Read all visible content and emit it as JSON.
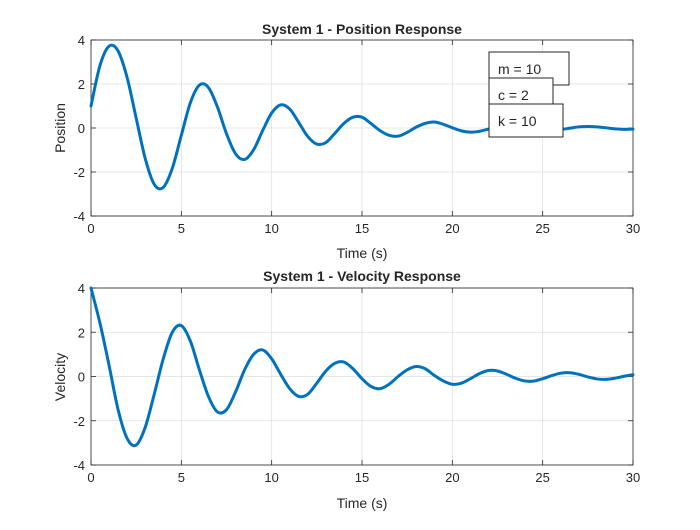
{
  "figure": {
    "background": "#ffffff",
    "line_color": "#0072bd",
    "grid_color": "#dfdfdf"
  },
  "chart_data": [
    {
      "type": "line",
      "title": "System 1 - Position Response",
      "xlabel": "Time (s)",
      "ylabel": "Position",
      "xlim": [
        0,
        30
      ],
      "ylim": [
        -4,
        4
      ],
      "xticks": [
        0,
        5,
        10,
        15,
        20,
        25,
        30
      ],
      "yticks": [
        -4,
        -2,
        0,
        2,
        4
      ],
      "grid": true,
      "series": [
        {
          "color": "#0072bd",
          "x": [
            0,
            0.5,
            1,
            1.5,
            2,
            2.5,
            3,
            3.5,
            4,
            4.5,
            5,
            5.5,
            6,
            6.5,
            7,
            7.5,
            8,
            8.5,
            9,
            9.5,
            10,
            10.5,
            11,
            11.5,
            12,
            12.5,
            13,
            13.5,
            14,
            14.5,
            15,
            15.5,
            16,
            16.5,
            17,
            17.5,
            18,
            18.5,
            19,
            19.5,
            20,
            20.5,
            21,
            21.5,
            22,
            22.5,
            23,
            23.5,
            24,
            24.5,
            25,
            25.5,
            26,
            26.5,
            27,
            27.5,
            28,
            28.5,
            29,
            29.5,
            30
          ],
          "y": [
            1.0,
            2.85,
            3.72,
            3.5,
            2.29,
            0.45,
            -1.38,
            -2.56,
            -2.7,
            -1.83,
            -0.33,
            1.15,
            1.95,
            1.84,
            0.95,
            -0.26,
            -1.17,
            -1.43,
            -0.99,
            -0.12,
            0.68,
            1.05,
            0.86,
            0.25,
            -0.39,
            -0.73,
            -0.66,
            -0.24,
            0.21,
            0.49,
            0.49,
            0.2,
            -0.12,
            -0.33,
            -0.37,
            -0.2,
            0.04,
            0.21,
            0.27,
            0.17,
            0.01,
            -0.13,
            -0.19,
            -0.15,
            -0.05,
            0.07,
            0.13,
            0.12,
            0.06,
            -0.03,
            -0.09,
            -0.11,
            -0.07,
            -0.01,
            0.05,
            0.07,
            0.05,
            0.01,
            -0.04,
            -0.06,
            -0.05
          ]
        }
      ],
      "annotations": [
        "m = 10",
        "c = 2",
        "k = 10"
      ]
    },
    {
      "type": "line",
      "title": "System 1 - Velocity Response",
      "xlabel": "Time (s)",
      "ylabel": "Velocity",
      "xlim": [
        0,
        30
      ],
      "ylim": [
        -4,
        4
      ],
      "xticks": [
        0,
        5,
        10,
        15,
        20,
        25,
        30
      ],
      "yticks": [
        -4,
        -2,
        0,
        2,
        4
      ],
      "grid": true,
      "series": [
        {
          "color": "#0072bd",
          "x": [
            0,
            0.5,
            1,
            1.5,
            2,
            2.5,
            3,
            3.5,
            4,
            4.5,
            5,
            5.5,
            6,
            6.5,
            7,
            7.5,
            8,
            8.5,
            9,
            9.5,
            10,
            10.5,
            11,
            11.5,
            12,
            12.5,
            13,
            13.5,
            14,
            14.5,
            15,
            15.5,
            16,
            16.5,
            17,
            17.5,
            18,
            18.5,
            19,
            19.5,
            20,
            20.5,
            21,
            21.5,
            22,
            22.5,
            23,
            23.5,
            24,
            24.5,
            25,
            25.5,
            26,
            26.5,
            27,
            27.5,
            28,
            28.5,
            29,
            29.5,
            30
          ],
          "y": [
            4.0,
            2.4,
            0.5,
            -1.5,
            -2.8,
            -3.1,
            -2.3,
            -0.8,
            0.8,
            2.0,
            2.3,
            1.6,
            0.3,
            -0.9,
            -1.6,
            -1.5,
            -0.7,
            0.3,
            1.0,
            1.2,
            0.8,
            0.1,
            -0.55,
            -0.9,
            -0.8,
            -0.3,
            0.25,
            0.6,
            0.65,
            0.35,
            -0.1,
            -0.45,
            -0.55,
            -0.35,
            0.0,
            0.3,
            0.45,
            0.35,
            0.05,
            -0.2,
            -0.35,
            -0.3,
            -0.1,
            0.13,
            0.27,
            0.25,
            0.1,
            -0.08,
            -0.2,
            -0.21,
            -0.1,
            0.04,
            0.15,
            0.17,
            0.1,
            -0.02,
            -0.11,
            -0.13,
            -0.08,
            0.01,
            0.08
          ]
        }
      ]
    }
  ]
}
